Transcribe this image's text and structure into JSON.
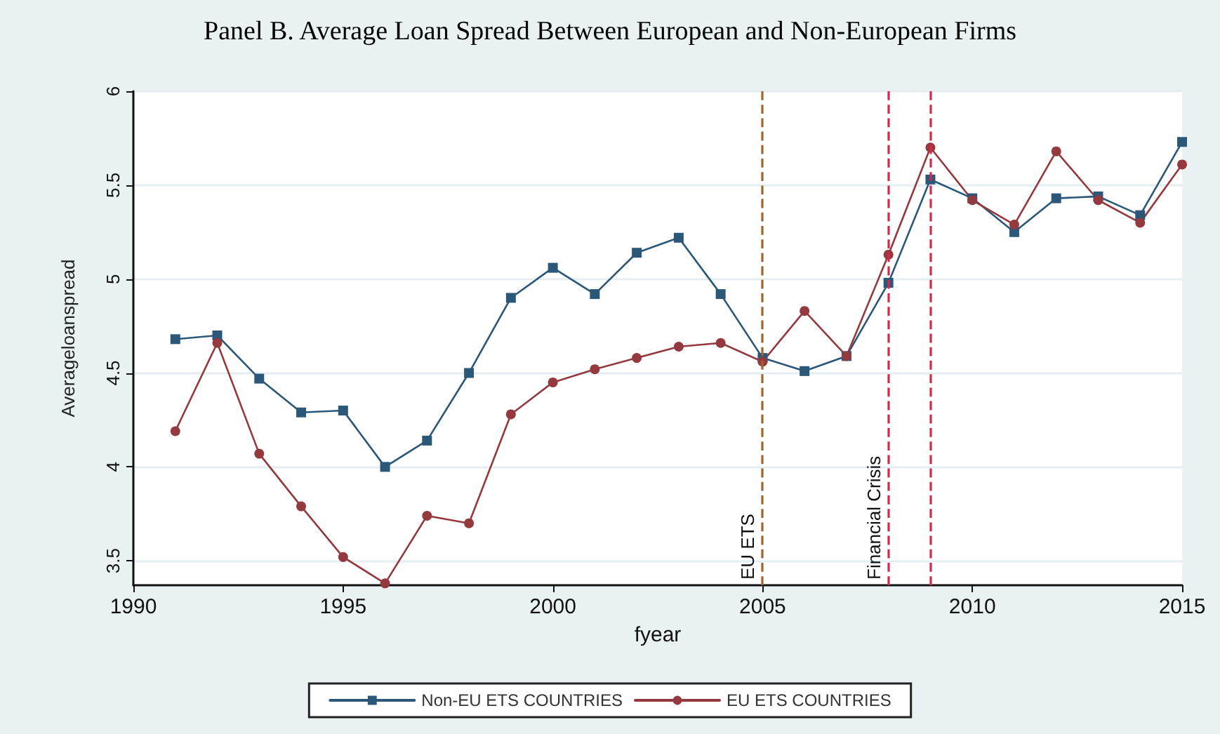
{
  "chart_data": {
    "type": "line",
    "title": "Panel B. Average Loan Spread Between European and Non-European Firms",
    "xlabel": "fyear",
    "ylabel": "Averageloanspread",
    "x": [
      1991,
      1992,
      1993,
      1994,
      1995,
      1996,
      1997,
      1998,
      1999,
      2000,
      2001,
      2002,
      2003,
      2004,
      2005,
      2006,
      2007,
      2008,
      2009,
      2010,
      2011,
      2012,
      2013,
      2014,
      2015
    ],
    "series": [
      {
        "name": "Non-EU ETS COUNTRIES",
        "color": "#2b5778",
        "marker": "square",
        "values": [
          4.68,
          4.7,
          4.47,
          4.29,
          4.3,
          4.0,
          4.14,
          4.5,
          4.9,
          5.06,
          4.92,
          5.14,
          5.22,
          4.92,
          4.58,
          4.51,
          4.59,
          4.98,
          5.53,
          5.43,
          5.25,
          5.43,
          5.44,
          5.34,
          5.73
        ]
      },
      {
        "name": "EU ETS COUNTRIES",
        "color": "#943a3f",
        "marker": "circle",
        "values": [
          4.19,
          4.66,
          4.07,
          3.79,
          3.52,
          3.38,
          3.74,
          3.7,
          4.28,
          4.45,
          4.52,
          4.58,
          4.64,
          4.66,
          4.56,
          4.83,
          4.59,
          5.13,
          5.7,
          5.42,
          5.29,
          5.68,
          5.42,
          5.3,
          5.61
        ]
      }
    ],
    "xlim": [
      1990,
      2015
    ],
    "xticks": [
      1990,
      1995,
      2000,
      2005,
      2010,
      2015
    ],
    "ylim": [
      3.37,
      6
    ],
    "yticks": [
      3.5,
      4,
      4.5,
      5,
      5.5,
      6
    ],
    "ref_lines": [
      {
        "axis": "x",
        "value": 2005,
        "label": "EU ETS",
        "color": "#a0662a",
        "line_style": "dashed"
      },
      {
        "axis": "x",
        "value": 2008,
        "label": "Financial Crisis",
        "color": "#d9264a",
        "line_style": "dashed"
      },
      {
        "axis": "x",
        "value": 2009,
        "label": null,
        "color": "#d9264a",
        "line_style": "dashed"
      }
    ],
    "grid": "y",
    "legend": "bottom",
    "line_style": "solid"
  }
}
